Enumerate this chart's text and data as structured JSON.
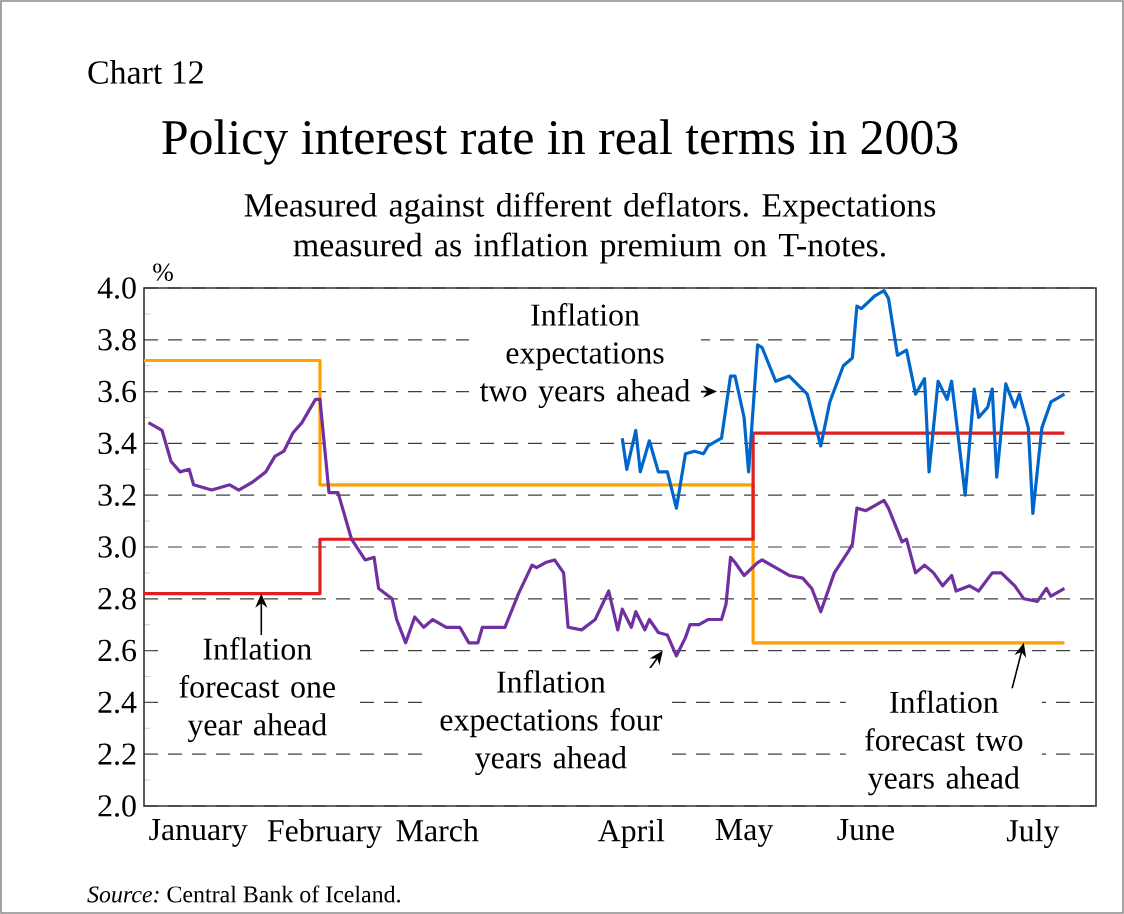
{
  "chart_data": {
    "type": "line",
    "title": "Policy interest rate in real terms in 2003",
    "subtitle": "Measured against different deflators. Expectations measured as inflation premium on T-notes.",
    "ylabel": "%",
    "xlim": [
      "2003-01-01",
      "2003-07-31"
    ],
    "xticks": [
      {
        "value": "2003-01-13",
        "label": "January"
      },
      {
        "value": "2003-02-10",
        "label": "February"
      },
      {
        "value": "2003-03-07",
        "label": "March"
      },
      {
        "value": "2003-04-19",
        "label": "April"
      },
      {
        "value": "2003-05-14",
        "label": "May"
      },
      {
        "value": "2003-06-10",
        "label": "June"
      },
      {
        "value": "2003-07-17",
        "label": "July"
      }
    ],
    "ylim": [
      2.0,
      4.0
    ],
    "yticks": [
      {
        "value": 2.0,
        "label": "2.0"
      },
      {
        "value": 2.2,
        "label": "2.2"
      },
      {
        "value": 2.4,
        "label": "2.4"
      },
      {
        "value": 2.6,
        "label": "2.6"
      },
      {
        "value": 2.8,
        "label": "2.8"
      },
      {
        "value": 3.0,
        "label": "3.0"
      },
      {
        "value": 3.2,
        "label": "3.2"
      },
      {
        "value": 3.4,
        "label": "3.4"
      },
      {
        "value": 3.6,
        "label": "3.6"
      },
      {
        "value": 3.8,
        "label": "3.8"
      },
      {
        "value": 4.0,
        "label": "4.0"
      }
    ],
    "grid": "y",
    "series": [
      {
        "type": "step",
        "color": "#ffa000",
        "x": [
          "2003-01-01",
          "2003-02-09",
          "2003-05-16",
          "2003-07-24"
        ],
        "values": [
          3.72,
          3.24,
          2.63,
          2.63
        ]
      },
      {
        "type": "step",
        "color": "#e02020",
        "x": [
          "2003-01-01",
          "2003-02-09",
          "2003-05-16",
          "2003-07-24"
        ],
        "values": [
          2.82,
          3.03,
          3.44,
          3.44
        ]
      },
      {
        "color": "#7030a0",
        "x": [
          "2003-01-02",
          "2003-01-05",
          "2003-01-07",
          "2003-01-09",
          "2003-01-11",
          "2003-01-12",
          "2003-01-16",
          "2003-01-20",
          "2003-01-22",
          "2003-01-25",
          "2003-01-28",
          "2003-01-30",
          "2003-02-01",
          "2003-02-03",
          "2003-02-05",
          "2003-02-08",
          "2003-02-09",
          "2003-02-11",
          "2003-02-13",
          "2003-02-16",
          "2003-02-19",
          "2003-02-21",
          "2003-02-22",
          "2003-02-25",
          "2003-02-26",
          "2003-02-28",
          "2003-03-02",
          "2003-03-04",
          "2003-03-06",
          "2003-03-09",
          "2003-03-12",
          "2003-03-14",
          "2003-03-16",
          "2003-03-17",
          "2003-03-22",
          "2003-03-25",
          "2003-03-28",
          "2003-03-29",
          "2003-03-31",
          "2003-04-02",
          "2003-04-04",
          "2003-04-05",
          "2003-04-08",
          "2003-04-11",
          "2003-04-14",
          "2003-04-16",
          "2003-04-17",
          "2003-04-19",
          "2003-04-20",
          "2003-04-22",
          "2003-04-23",
          "2003-04-25",
          "2003-04-27",
          "2003-04-29",
          "2003-05-01",
          "2003-05-02",
          "2003-05-04",
          "2003-05-06",
          "2003-05-09",
          "2003-05-10",
          "2003-05-11",
          "2003-05-12",
          "2003-05-14",
          "2003-05-17",
          "2003-05-18",
          "2003-05-21",
          "2003-05-24",
          "2003-05-27",
          "2003-05-29",
          "2003-05-31",
          "2003-06-01",
          "2003-06-03",
          "2003-06-06",
          "2003-06-07",
          "2003-06-08",
          "2003-06-10",
          "2003-06-12",
          "2003-06-14",
          "2003-06-15",
          "2003-06-18",
          "2003-06-19",
          "2003-06-21",
          "2003-06-23",
          "2003-06-25",
          "2003-06-27",
          "2003-06-29",
          "2003-06-30",
          "2003-07-03",
          "2003-07-05",
          "2003-07-08",
          "2003-07-10",
          "2003-07-13",
          "2003-07-15",
          "2003-07-18",
          "2003-07-20",
          "2003-07-21",
          "2003-07-23",
          "2003-07-24"
        ],
        "values": [
          3.48,
          3.45,
          3.33,
          3.29,
          3.3,
          3.24,
          3.22,
          3.24,
          3.22,
          3.25,
          3.29,
          3.35,
          3.37,
          3.44,
          3.48,
          3.57,
          3.57,
          3.21,
          3.21,
          3.03,
          2.95,
          2.96,
          2.84,
          2.8,
          2.72,
          2.63,
          2.73,
          2.69,
          2.72,
          2.69,
          2.69,
          2.63,
          2.63,
          2.69,
          2.69,
          2.82,
          2.93,
          2.92,
          2.94,
          2.95,
          2.9,
          2.69,
          2.68,
          2.72,
          2.83,
          2.68,
          2.76,
          2.69,
          2.75,
          2.68,
          2.72,
          2.67,
          2.66,
          2.58,
          2.65,
          2.7,
          2.7,
          2.72,
          2.72,
          2.78,
          2.96,
          2.94,
          2.89,
          2.94,
          2.95,
          2.92,
          2.89,
          2.88,
          2.84,
          2.75,
          2.8,
          2.9,
          2.98,
          3.01,
          3.15,
          3.14,
          3.16,
          3.18,
          3.15,
          3.02,
          3.03,
          2.9,
          2.93,
          2.9,
          2.85,
          2.89,
          2.83,
          2.85,
          2.83,
          2.9,
          2.9,
          2.85,
          2.8,
          2.79,
          2.84,
          2.81,
          2.83,
          2.84
        ]
      },
      {
        "color": "#0066cc",
        "x": [
          "2003-04-17",
          "2003-04-18",
          "2003-04-20",
          "2003-04-21",
          "2003-04-23",
          "2003-04-25",
          "2003-04-27",
          "2003-04-29",
          "2003-05-01",
          "2003-05-03",
          "2003-05-05",
          "2003-05-06",
          "2003-05-09",
          "2003-05-11",
          "2003-05-12",
          "2003-05-14",
          "2003-05-15",
          "2003-05-17",
          "2003-05-18",
          "2003-05-21",
          "2003-05-24",
          "2003-05-28",
          "2003-05-31",
          "2003-06-02",
          "2003-06-05",
          "2003-06-07",
          "2003-06-08",
          "2003-06-09",
          "2003-06-12",
          "2003-06-14",
          "2003-06-15",
          "2003-06-17",
          "2003-06-19",
          "2003-06-21",
          "2003-06-23",
          "2003-06-24",
          "2003-06-26",
          "2003-06-28",
          "2003-06-29",
          "2003-07-02",
          "2003-07-04",
          "2003-07-05",
          "2003-07-07",
          "2003-07-08",
          "2003-07-09",
          "2003-07-11",
          "2003-07-13",
          "2003-07-14",
          "2003-07-16",
          "2003-07-17",
          "2003-07-19",
          "2003-07-21",
          "2003-07-22",
          "2003-07-24"
        ],
        "values": [
          3.42,
          3.3,
          3.45,
          3.29,
          3.41,
          3.29,
          3.29,
          3.15,
          3.36,
          3.37,
          3.36,
          3.39,
          3.42,
          3.66,
          3.66,
          3.5,
          3.29,
          3.78,
          3.77,
          3.64,
          3.66,
          3.59,
          3.39,
          3.56,
          3.7,
          3.73,
          3.93,
          3.92,
          3.97,
          3.99,
          3.96,
          3.74,
          3.76,
          3.59,
          3.65,
          3.29,
          3.64,
          3.57,
          3.64,
          3.2,
          3.61,
          3.5,
          3.54,
          3.61,
          3.27,
          3.63,
          3.54,
          3.59,
          3.46,
          3.13,
          3.46,
          3.56,
          3.57,
          3.59
        ]
      }
    ],
    "annotations": [
      "Chart 12",
      {
        "text": "Inflation expectations two years ahead",
        "x": "2003-05-08",
        "y": 3.6
      },
      {
        "text": "Inflation forecast one year ahead",
        "x": "2003-01-27",
        "y": 2.82
      },
      {
        "text": "Inflation expectations four years ahead",
        "x": "2003-04-26",
        "y": 2.6
      },
      {
        "text": "Inflation forecast two years ahead",
        "x": "2003-07-15",
        "y": 2.63
      },
      "*Source:* Central Bank of Iceland."
    ]
  }
}
